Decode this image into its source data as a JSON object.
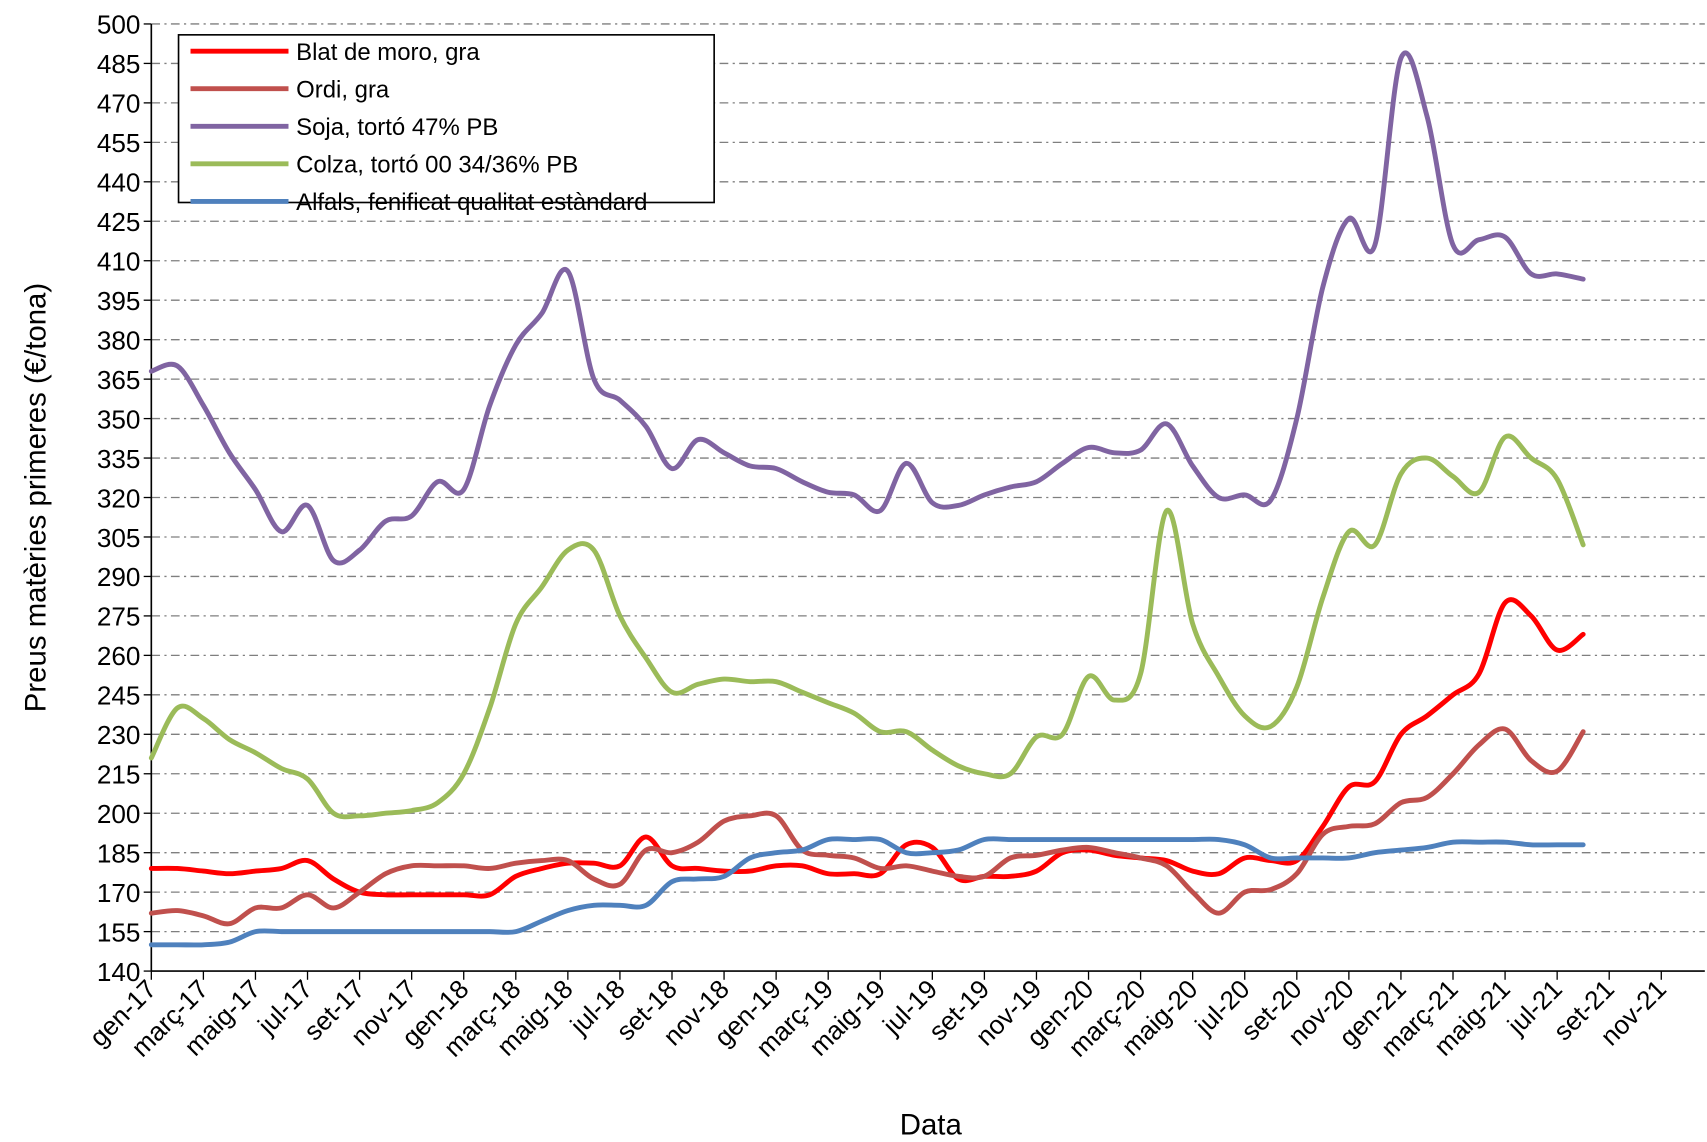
{
  "chart_data": {
    "type": "line",
    "x_label": "Data",
    "y_label": "Preus matèries primeres (€/tona)",
    "categories": [
      "gen-17",
      null,
      "març-17",
      null,
      "maig-17",
      null,
      "jul-17",
      null,
      "set-17",
      null,
      "nov-17",
      null,
      "gen-18",
      null,
      "març-18",
      null,
      "maig-18",
      null,
      "jul-18",
      null,
      "set-18",
      null,
      "nov-18",
      null,
      "gen-19",
      null,
      "març-19",
      null,
      "maig-19",
      null,
      "jul-19",
      null,
      "set-19",
      null,
      "nov-19",
      null,
      "gen-20",
      null,
      "març-20",
      null,
      "maig-20",
      null,
      "jul-20",
      null,
      "set-20",
      null,
      "nov-20",
      null,
      "gen-21",
      null,
      "març-21",
      null,
      "maig-21",
      null,
      "jul-21",
      null,
      "set-21",
      null,
      "nov-21"
    ],
    "series": [
      {
        "name": "Blat de moro, gra",
        "color": "#ff0000",
        "values": [
          179,
          179,
          178,
          177,
          178,
          179,
          182,
          175,
          170,
          169,
          169,
          169,
          169,
          169,
          176,
          179,
          181,
          181,
          180,
          191,
          180,
          179,
          178,
          178,
          180,
          180,
          177,
          177,
          177,
          188,
          187,
          175,
          176,
          176,
          178,
          185,
          186,
          184,
          183,
          182,
          178,
          177,
          183,
          182,
          182,
          195,
          210,
          212,
          230,
          237,
          245,
          253,
          280,
          275,
          262,
          268,
          null,
          null,
          null
        ]
      },
      {
        "name": "Ordi, gra",
        "color": "#c0504d",
        "values": [
          162,
          163,
          161,
          158,
          164,
          164,
          169,
          164,
          170,
          177,
          180,
          180,
          180,
          179,
          181,
          182,
          182,
          175,
          173,
          186,
          185,
          189,
          197,
          199,
          199,
          186,
          184,
          183,
          179,
          180,
          178,
          176,
          176,
          183,
          184,
          186,
          187,
          185,
          183,
          180,
          170,
          162,
          170,
          171,
          177,
          192,
          195,
          196,
          204,
          206,
          215,
          226,
          232,
          220,
          216,
          231,
          null,
          null,
          null
        ]
      },
      {
        "name": "Soja, tortó 47% PB",
        "color": "#8064a2",
        "values": [
          368,
          370,
          355,
          337,
          323,
          307,
          317,
          296,
          300,
          311,
          313,
          326,
          323,
          355,
          378,
          390,
          406,
          365,
          357,
          347,
          331,
          342,
          337,
          332,
          331,
          326,
          322,
          321,
          315,
          333,
          318,
          317,
          321,
          324,
          326,
          333,
          339,
          337,
          338,
          348,
          332,
          320,
          321,
          319,
          350,
          400,
          426,
          416,
          487,
          465,
          416,
          418,
          419,
          405,
          405,
          403,
          null,
          null,
          null
        ]
      },
      {
        "name": "Colza, tortó 00 34/36% PB",
        "color": "#9bbb59",
        "values": [
          221,
          240,
          236,
          228,
          223,
          217,
          213,
          200,
          199,
          200,
          201,
          204,
          215,
          240,
          272,
          286,
          300,
          300,
          275,
          259,
          246,
          249,
          251,
          250,
          250,
          246,
          242,
          238,
          231,
          231,
          224,
          218,
          215,
          215,
          229,
          230,
          252,
          243,
          253,
          315,
          272,
          252,
          237,
          233,
          248,
          282,
          307,
          302,
          329,
          335,
          328,
          322,
          343,
          335,
          327,
          302,
          null,
          null,
          null
        ]
      },
      {
        "name": "Alfals, fenificat qualitat estàndard",
        "color": "#4f81bd",
        "values": [
          150,
          150,
          150,
          151,
          155,
          155,
          155,
          155,
          155,
          155,
          155,
          155,
          155,
          155,
          155,
          159,
          163,
          165,
          165,
          165,
          174,
          175,
          176,
          183,
          185,
          186,
          190,
          190,
          190,
          185,
          185,
          186,
          190,
          190,
          190,
          190,
          190,
          190,
          190,
          190,
          190,
          190,
          188,
          183,
          183,
          183,
          183,
          185,
          186,
          187,
          189,
          189,
          189,
          188,
          188,
          188,
          null,
          null,
          null
        ]
      }
    ],
    "ylim": [
      140,
      500
    ],
    "yticks": [
      140,
      155,
      170,
      185,
      200,
      215,
      230,
      245,
      260,
      275,
      290,
      305,
      320,
      335,
      350,
      365,
      380,
      395,
      410,
      425,
      440,
      455,
      470,
      485,
      500
    ],
    "grid": true,
    "legend": "top-left"
  }
}
